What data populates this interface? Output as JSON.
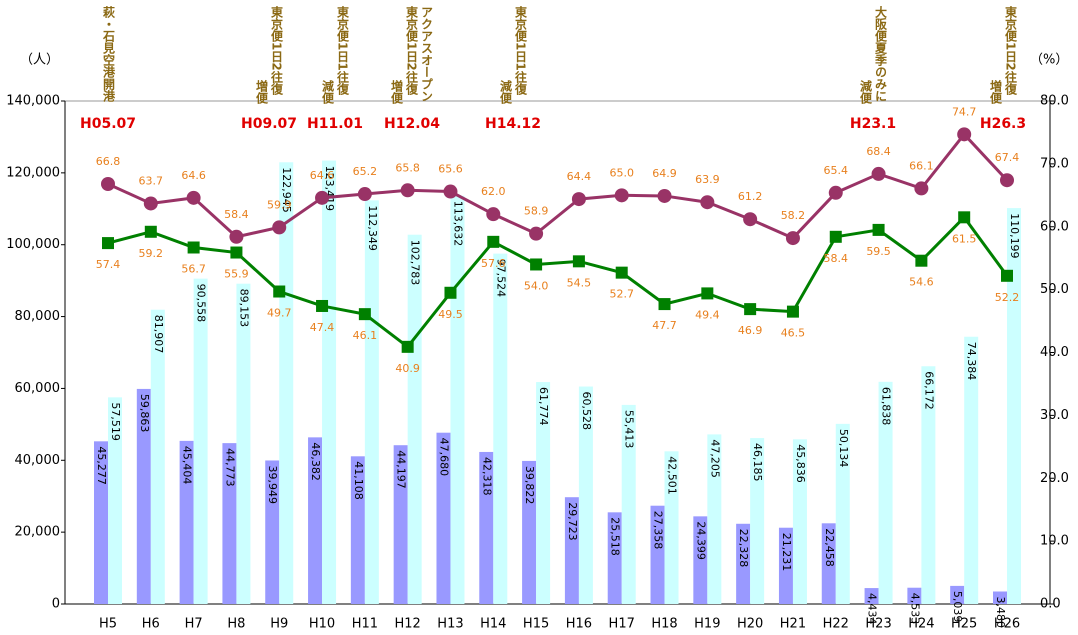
{
  "chart_data": {
    "type": "bar_line",
    "ylabel": "（人）",
    "y2label": "（%）",
    "categories": [
      "H5",
      "H6",
      "H7",
      "H8",
      "H9",
      "H10",
      "H11",
      "H12",
      "H13",
      "H14",
      "H15",
      "H16",
      "H17",
      "H18",
      "H19",
      "H20",
      "H21",
      "H22",
      "H23",
      "H24",
      "H25",
      "H26"
    ],
    "series": [
      {
        "type": "bar",
        "color": "#9999ff",
        "values": [
          45277,
          59863,
          45404,
          44773,
          39949,
          46382,
          41108,
          44197,
          47680,
          42318,
          39822,
          29723,
          25518,
          27358,
          24399,
          22328,
          21231,
          22458,
          4434,
          4533,
          5039,
          3480
        ],
        "value_labels": [
          "45,277",
          "59,863",
          "45,404",
          "44,773",
          "39,949",
          "46,382",
          "41,108",
          "44,197",
          "47,680",
          "42,318",
          "39,822",
          "29,723",
          "25,518",
          "27,358",
          "24,399",
          "22,328",
          "21,231",
          "22,458",
          "4,434",
          "4,533",
          "5,039",
          "3,480"
        ]
      },
      {
        "type": "bar",
        "color": "#ccffff",
        "values": [
          57519,
          81907,
          90558,
          89153,
          122945,
          123419,
          112349,
          102783,
          113632,
          97524,
          61774,
          60528,
          55413,
          42501,
          47205,
          46185,
          45836,
          50134,
          61838,
          66172,
          74384,
          110199
        ],
        "value_labels": [
          "57,519",
          "81,907",
          "90,558",
          "89,153",
          "122,945",
          "123,419",
          "112,349",
          "102,783",
          "113,632",
          "97,524",
          "61,774",
          "60,528",
          "55,413",
          "42,501",
          "47,205",
          "46,185",
          "45,836",
          "50,134",
          "61,838",
          "66,172",
          "74,384",
          "110,199"
        ]
      },
      {
        "type": "line",
        "axis": "y2",
        "color": "#993366",
        "marker": "circle",
        "values": [
          66.8,
          63.7,
          64.6,
          58.4,
          59.9,
          64.6,
          65.2,
          65.8,
          65.6,
          62.0,
          58.9,
          64.4,
          65.0,
          64.9,
          63.9,
          61.2,
          58.2,
          65.4,
          68.4,
          66.1,
          74.7,
          67.4
        ],
        "value_labels": [
          "66.8",
          "63.7",
          "64.6",
          "58.4",
          "59.9",
          "64.6",
          "65.2",
          "65.8",
          "65.6",
          "62.0",
          "58.9",
          "64.4",
          "65.0",
          "64.9",
          "63.9",
          "61.2",
          "58.2",
          "65.4",
          "68.4",
          "66.1",
          "74.7",
          "67.4"
        ]
      },
      {
        "type": "line",
        "axis": "y2",
        "color": "#008000",
        "marker": "square",
        "values": [
          57.4,
          59.2,
          56.7,
          55.9,
          49.7,
          47.4,
          46.1,
          40.9,
          49.5,
          57.6,
          54.0,
          54.5,
          52.7,
          47.7,
          49.4,
          46.9,
          46.5,
          58.4,
          59.5,
          54.6,
          61.5,
          52.2
        ],
        "value_labels": [
          "57.4",
          "59.2",
          "56.7",
          "55.9",
          "49.7",
          "47.4",
          "46.1",
          "40.9",
          "49.5",
          "57.6",
          "54.0",
          "54.5",
          "52.7",
          "47.7",
          "49.4",
          "46.9",
          "46.5",
          "58.4",
          "59.5",
          "54.6",
          "61.5",
          "52.2"
        ]
      }
    ],
    "ylim": [
      0,
      140000
    ],
    "yticks": [
      {
        "value": 0,
        "label": "0"
      },
      {
        "value": 20000,
        "label": "20,000"
      },
      {
        "value": 40000,
        "label": "40,000"
      },
      {
        "value": 60000,
        "label": "60,000"
      },
      {
        "value": 80000,
        "label": "80,000"
      },
      {
        "value": 100000,
        "label": "100,000"
      },
      {
        "value": 120000,
        "label": "120,000"
      },
      {
        "value": 140000,
        "label": "140,000"
      }
    ],
    "y2lim": [
      0,
      80
    ],
    "y2ticks": [
      {
        "value": 0,
        "label": "0.0"
      },
      {
        "value": 10,
        "label": "10.0"
      },
      {
        "value": 20,
        "label": "20.0"
      },
      {
        "value": 30,
        "label": "30.0"
      },
      {
        "value": 40,
        "label": "40.0"
      },
      {
        "value": 50,
        "label": "50.0"
      },
      {
        "value": 60,
        "label": "60.0"
      },
      {
        "value": 70,
        "label": "70.0"
      },
      {
        "value": 80,
        "label": "80.0"
      }
    ],
    "annotations": [
      {
        "lines": [
          "萩・石見空港開港"
        ],
        "date": "H05.07"
      },
      {
        "lines": [
          "東京便1日2往復",
          "増便"
        ],
        "date": "H09.07"
      },
      {
        "lines": [
          "東京便1日1往復",
          "減便"
        ],
        "date": "H11.01"
      },
      {
        "lines": [
          "アクアスオープン",
          "東京便1日2往復",
          "増便"
        ],
        "date": "H12.04"
      },
      {
        "lines": [
          "東京便1日1往復",
          "減便"
        ],
        "date": "H14.12"
      },
      {
        "lines": [
          "大阪便夏季のみに",
          "減便"
        ],
        "date": "H23.1"
      },
      {
        "lines": [
          "東京便1日2往復",
          "増便"
        ],
        "date": "H26.3"
      }
    ]
  }
}
